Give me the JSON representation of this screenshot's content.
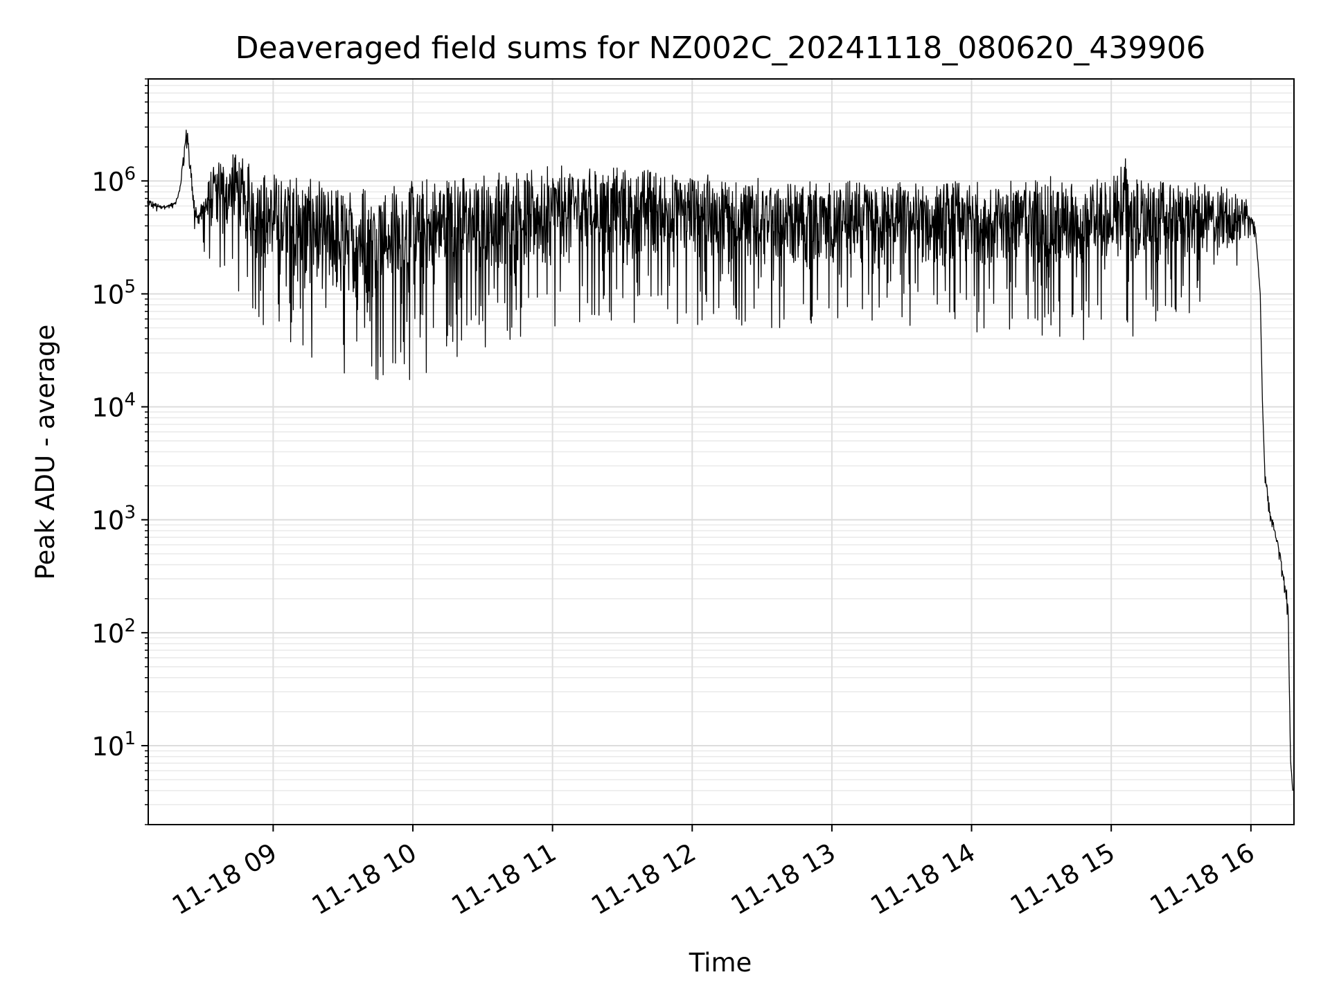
{
  "chart_data": {
    "type": "line",
    "title": "Deaveraged field sums for NZ002C_20241118_080620_439906",
    "xlabel": "Time",
    "ylabel": "Peak ADU - average",
    "yscale": "log",
    "ylim": [
      2,
      8000000
    ],
    "xlim": [
      "2024-11-18 08:06:20",
      "2024-11-18 16:18:30"
    ],
    "grid": "on (major and minor)",
    "line_color": "#000000",
    "x_ticks": [
      {
        "time": "2024-11-18 09:00",
        "label": "11-18 09"
      },
      {
        "time": "2024-11-18 10:00",
        "label": "11-18 10"
      },
      {
        "time": "2024-11-18 11:00",
        "label": "11-18 11"
      },
      {
        "time": "2024-11-18 12:00",
        "label": "11-18 12"
      },
      {
        "time": "2024-11-18 13:00",
        "label": "11-18 13"
      },
      {
        "time": "2024-11-18 14:00",
        "label": "11-18 14"
      },
      {
        "time": "2024-11-18 15:00",
        "label": "11-18 15"
      },
      {
        "time": "2024-11-18 16:00",
        "label": "11-18 16"
      }
    ],
    "y_ticks": [
      {
        "value": 10,
        "base": "10",
        "exp": "1"
      },
      {
        "value": 100,
        "base": "10",
        "exp": "2"
      },
      {
        "value": 1000,
        "base": "10",
        "exp": "3"
      },
      {
        "value": 10000,
        "base": "10",
        "exp": "4"
      },
      {
        "value": 100000,
        "base": "10",
        "exp": "5"
      },
      {
        "value": 1000000,
        "base": "10",
        "exp": "6"
      }
    ],
    "series": [
      {
        "x": [
          "2024-11-18 08:06",
          "2024-11-18 08:12",
          "2024-11-18 08:18",
          "2024-11-18 08:20",
          "2024-11-18 08:23",
          "2024-11-18 08:25",
          "2024-11-18 08:27",
          "2024-11-18 08:30",
          "2024-11-18 08:33",
          "2024-11-18 08:36",
          "2024-11-18 08:39",
          "2024-11-18 08:42",
          "2024-11-18 08:45",
          "2024-11-18 08:48",
          "2024-11-18 08:51",
          "2024-11-18 08:54",
          "2024-11-18 08:57",
          "2024-11-18 09:00",
          "2024-11-18 09:10",
          "2024-11-18 09:20",
          "2024-11-18 09:30",
          "2024-11-18 09:40",
          "2024-11-18 09:50",
          "2024-11-18 10:00",
          "2024-11-18 10:10",
          "2024-11-18 10:20",
          "2024-11-18 10:30",
          "2024-11-18 10:40",
          "2024-11-18 10:50",
          "2024-11-18 11:00",
          "2024-11-18 11:10",
          "2024-11-18 11:20",
          "2024-11-18 11:30",
          "2024-11-18 11:40",
          "2024-11-18 11:50",
          "2024-11-18 12:00",
          "2024-11-18 12:10",
          "2024-11-18 12:20",
          "2024-11-18 12:30",
          "2024-11-18 12:40",
          "2024-11-18 12:50",
          "2024-11-18 13:00",
          "2024-11-18 13:10",
          "2024-11-18 13:20",
          "2024-11-18 13:30",
          "2024-11-18 13:40",
          "2024-11-18 13:50",
          "2024-11-18 14:00",
          "2024-11-18 14:10",
          "2024-11-18 14:20",
          "2024-11-18 14:30",
          "2024-11-18 14:40",
          "2024-11-18 14:50",
          "2024-11-18 15:00",
          "2024-11-18 15:06",
          "2024-11-18 15:10",
          "2024-11-18 15:20",
          "2024-11-18 15:30",
          "2024-11-18 15:40",
          "2024-11-18 15:50",
          "2024-11-18 15:58",
          "2024-11-18 16:02",
          "2024-11-18 16:04",
          "2024-11-18 16:05",
          "2024-11-18 16:06",
          "2024-11-18 16:08",
          "2024-11-18 16:10",
          "2024-11-18 16:12",
          "2024-11-18 16:14",
          "2024-11-18 16:16",
          "2024-11-18 16:17",
          "2024-11-18 16:18"
        ],
        "y_upper": [
          700000,
          600000,
          650000,
          900000,
          4000000,
          1200000,
          600000,
          700000,
          1200000,
          1500000,
          1600000,
          1700000,
          1800000,
          1500000,
          1400000,
          1300000,
          1200000,
          1200000,
          1100000,
          1000000,
          900000,
          950000,
          1000000,
          1050000,
          1100000,
          1150000,
          1200000,
          1250000,
          1300000,
          1350000,
          1400000,
          1350000,
          1300000,
          1300000,
          1250000,
          1200000,
          1150000,
          1100000,
          1050000,
          1000000,
          1000000,
          1000000,
          1000000,
          950000,
          1000000,
          1000000,
          1000000,
          1000000,
          1000000,
          1050000,
          1100000,
          1100000,
          1100000,
          1150000,
          1700000,
          1100000,
          1000000,
          1000000,
          950000,
          900000,
          700000,
          400000,
          100000,
          10000,
          3000,
          1300,
          900,
          600,
          350,
          200,
          8,
          4
        ],
        "y_lower": [
          500000,
          550000,
          550000,
          800000,
          1000000,
          500000,
          300000,
          250000,
          150000,
          150000,
          150000,
          120000,
          100000,
          80000,
          60000,
          50000,
          45000,
          40000,
          25000,
          18000,
          17000,
          18000,
          16000,
          17000,
          20000,
          25000,
          30000,
          35000,
          45000,
          50000,
          55000,
          55000,
          55000,
          55000,
          55000,
          50000,
          50000,
          50000,
          50000,
          50000,
          50000,
          50000,
          50000,
          48000,
          47000,
          47000,
          47000,
          45000,
          45000,
          45000,
          40000,
          35000,
          40000,
          45000,
          35000,
          40000,
          50000,
          60000,
          70000,
          80000,
          300000,
          300000,
          100000,
          10000,
          2000,
          1000,
          700,
          450,
          250,
          120,
          5,
          4
        ]
      }
    ]
  }
}
